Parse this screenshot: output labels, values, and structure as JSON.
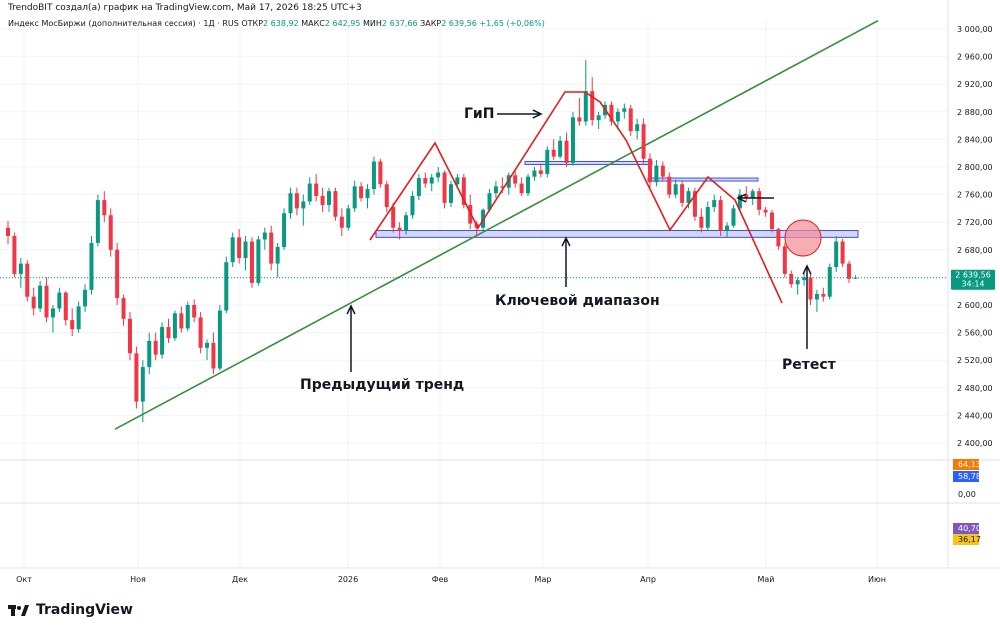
{
  "header": {
    "attribution": "TrendoBIT создал(а) график на TradingView.com, Май 17, 2026 18:25 UTC+3",
    "symbol_line": "Индекс МосБиржи (дополнительная сессия) · 1Д · RUS",
    "open_label": "ОТКР",
    "open_value": "2 638,92",
    "high_label": "МАКС",
    "high_value": "2 642,95",
    "low_label": "МИН",
    "low_value": "2 637,66",
    "close_label": "ЗАКР",
    "close_value": "2 639,56",
    "change_value": "+1,65 (+0,06%)"
  },
  "colors": {
    "up": "#089981",
    "down": "#f23645",
    "trendline": "#388e3c",
    "zigzag": "#e01f1f",
    "zone_fill": "#c5caf5",
    "zone_stroke": "#3f51e8",
    "retest_circle": "#f48c94",
    "grid": "#f0f3fa",
    "axis_text": "#131722"
  },
  "price_axis": {
    "ticks": [
      "3 000,00",
      "2 960,00",
      "2 920,00",
      "2 880,00",
      "2 840,00",
      "2 800,00",
      "2 760,00",
      "2 720,00",
      "2 680,00",
      "2 640,00",
      "2 600,00",
      "2 560,00",
      "2 520,00",
      "2 480,00",
      "2 440,00",
      "2 400,00"
    ],
    "last_price": "2 639,56",
    "countdown": "34:14"
  },
  "indicator_axis": {
    "pane1": [
      {
        "label": "64,13",
        "color": "#f57c00"
      },
      {
        "label": "58,78",
        "color": "#2962ff"
      },
      {
        "label": "0,00",
        "color": "none"
      }
    ],
    "pane2": [
      {
        "label": "40,70",
        "color": "#7e57c2"
      },
      {
        "label": "36,17",
        "color": "#f5c518"
      }
    ]
  },
  "time_axis": [
    "Окт",
    "Ноя",
    "Дек",
    "2026",
    "Фев",
    "Мар",
    "Апр",
    "Май",
    "Июн"
  ],
  "annotations": {
    "hs": "ГиП",
    "key_range": "Ключевой диапазон",
    "prev_trend": "Предыдущий тренд",
    "retest": "Ретест"
  },
  "brand": {
    "name": "TradingView"
  },
  "chart_data": {
    "type": "candlestick",
    "title": "Индекс МосБиржи (дополнительная сессия) · 1Д · RUS",
    "ylim": [
      2380,
      3020
    ],
    "ohlc": [
      [
        2712,
        2722,
        2688,
        2700
      ],
      [
        2700,
        2705,
        2640,
        2645
      ],
      [
        2645,
        2668,
        2625,
        2660
      ],
      [
        2660,
        2665,
        2605,
        2612
      ],
      [
        2612,
        2625,
        2585,
        2595
      ],
      [
        2595,
        2635,
        2590,
        2628
      ],
      [
        2628,
        2640,
        2575,
        2582
      ],
      [
        2582,
        2600,
        2560,
        2595
      ],
      [
        2595,
        2625,
        2590,
        2618
      ],
      [
        2618,
        2620,
        2570,
        2578
      ],
      [
        2578,
        2595,
        2555,
        2565
      ],
      [
        2565,
        2605,
        2560,
        2598
      ],
      [
        2598,
        2630,
        2590,
        2622
      ],
      [
        2622,
        2700,
        2615,
        2690
      ],
      [
        2690,
        2760,
        2685,
        2752
      ],
      [
        2752,
        2765,
        2720,
        2730
      ],
      [
        2730,
        2740,
        2670,
        2680
      ],
      [
        2680,
        2690,
        2600,
        2610
      ],
      [
        2610,
        2615,
        2570,
        2580
      ],
      [
        2580,
        2590,
        2520,
        2530
      ],
      [
        2530,
        2540,
        2450,
        2460
      ],
      [
        2460,
        2520,
        2430,
        2510
      ],
      [
        2510,
        2560,
        2500,
        2548
      ],
      [
        2548,
        2560,
        2520,
        2528
      ],
      [
        2528,
        2575,
        2522,
        2568
      ],
      [
        2568,
        2580,
        2545,
        2552
      ],
      [
        2552,
        2592,
        2548,
        2588
      ],
      [
        2588,
        2598,
        2560,
        2566
      ],
      [
        2566,
        2605,
        2562,
        2600
      ],
      [
        2600,
        2608,
        2575,
        2582
      ],
      [
        2582,
        2590,
        2530,
        2538
      ],
      [
        2538,
        2550,
        2520,
        2545
      ],
      [
        2545,
        2560,
        2500,
        2508
      ],
      [
        2508,
        2600,
        2505,
        2592
      ],
      [
        2592,
        2670,
        2588,
        2662
      ],
      [
        2662,
        2705,
        2655,
        2698
      ],
      [
        2698,
        2710,
        2660,
        2668
      ],
      [
        2668,
        2700,
        2650,
        2692
      ],
      [
        2692,
        2698,
        2625,
        2632
      ],
      [
        2632,
        2700,
        2628,
        2695
      ],
      [
        2695,
        2712,
        2680,
        2705
      ],
      [
        2705,
        2715,
        2650,
        2660
      ],
      [
        2660,
        2690,
        2640,
        2684
      ],
      [
        2684,
        2740,
        2680,
        2733
      ],
      [
        2733,
        2770,
        2725,
        2762
      ],
      [
        2762,
        2770,
        2730,
        2740
      ],
      [
        2740,
        2760,
        2715,
        2750
      ],
      [
        2750,
        2785,
        2745,
        2776
      ],
      [
        2776,
        2790,
        2750,
        2758
      ],
      [
        2758,
        2770,
        2735,
        2745
      ],
      [
        2745,
        2770,
        2735,
        2765
      ],
      [
        2765,
        2770,
        2722,
        2728
      ],
      [
        2728,
        2740,
        2700,
        2712
      ],
      [
        2712,
        2745,
        2708,
        2740
      ],
      [
        2740,
        2780,
        2735,
        2772
      ],
      [
        2772,
        2778,
        2750,
        2755
      ],
      [
        2755,
        2775,
        2740,
        2768
      ],
      [
        2768,
        2815,
        2760,
        2808
      ],
      [
        2808,
        2812,
        2770,
        2775
      ],
      [
        2775,
        2780,
        2735,
        2742
      ],
      [
        2742,
        2748,
        2705,
        2712
      ],
      [
        2712,
        2720,
        2695,
        2708
      ],
      [
        2708,
        2735,
        2702,
        2730
      ],
      [
        2730,
        2765,
        2725,
        2758
      ],
      [
        2758,
        2790,
        2752,
        2784
      ],
      [
        2784,
        2792,
        2770,
        2776
      ],
      [
        2776,
        2790,
        2765,
        2785
      ],
      [
        2785,
        2800,
        2778,
        2792
      ],
      [
        2792,
        2795,
        2740,
        2748
      ],
      [
        2748,
        2780,
        2742,
        2775
      ],
      [
        2775,
        2790,
        2770,
        2785
      ],
      [
        2785,
        2790,
        2740,
        2745
      ],
      [
        2745,
        2760,
        2710,
        2718
      ],
      [
        2718,
        2722,
        2700,
        2712
      ],
      [
        2712,
        2740,
        2708,
        2738
      ],
      [
        2738,
        2768,
        2735,
        2762
      ],
      [
        2762,
        2780,
        2755,
        2772
      ],
      [
        2772,
        2785,
        2762,
        2770
      ],
      [
        2770,
        2792,
        2760,
        2788
      ],
      [
        2788,
        2795,
        2770,
        2776
      ],
      [
        2776,
        2785,
        2758,
        2762
      ],
      [
        2762,
        2790,
        2758,
        2786
      ],
      [
        2786,
        2800,
        2780,
        2795
      ],
      [
        2795,
        2805,
        2785,
        2790
      ],
      [
        2790,
        2830,
        2785,
        2825
      ],
      [
        2825,
        2840,
        2810,
        2815
      ],
      [
        2815,
        2845,
        2812,
        2838
      ],
      [
        2838,
        2850,
        2800,
        2806
      ],
      [
        2806,
        2880,
        2802,
        2872
      ],
      [
        2872,
        2900,
        2860,
        2866
      ],
      [
        2866,
        2955,
        2860,
        2910
      ],
      [
        2910,
        2930,
        2860,
        2868
      ],
      [
        2868,
        2880,
        2855,
        2875
      ],
      [
        2875,
        2895,
        2870,
        2890
      ],
      [
        2890,
        2895,
        2860,
        2866
      ],
      [
        2866,
        2885,
        2855,
        2880
      ],
      [
        2880,
        2892,
        2870,
        2885
      ],
      [
        2885,
        2890,
        2845,
        2852
      ],
      [
        2852,
        2870,
        2840,
        2862
      ],
      [
        2862,
        2870,
        2805,
        2812
      ],
      [
        2812,
        2820,
        2770,
        2778
      ],
      [
        2778,
        2810,
        2772,
        2802
      ],
      [
        2802,
        2808,
        2780,
        2786
      ],
      [
        2786,
        2792,
        2755,
        2760
      ],
      [
        2760,
        2782,
        2755,
        2775
      ],
      [
        2775,
        2780,
        2742,
        2748
      ],
      [
        2748,
        2770,
        2740,
        2765
      ],
      [
        2765,
        2770,
        2722,
        2728
      ],
      [
        2728,
        2740,
        2705,
        2712
      ],
      [
        2712,
        2750,
        2708,
        2742
      ],
      [
        2742,
        2760,
        2735,
        2752
      ],
      [
        2752,
        2758,
        2700,
        2708
      ],
      [
        2708,
        2720,
        2698,
        2715
      ],
      [
        2715,
        2745,
        2712,
        2740
      ],
      [
        2740,
        2768,
        2735,
        2760
      ],
      [
        2760,
        2772,
        2750,
        2755
      ],
      [
        2755,
        2768,
        2745,
        2765
      ],
      [
        2765,
        2770,
        2730,
        2738
      ],
      [
        2738,
        2742,
        2728,
        2734
      ],
      [
        2734,
        2738,
        2705,
        2710
      ],
      [
        2710,
        2712,
        2680,
        2685
      ],
      [
        2685,
        2690,
        2640,
        2645
      ],
      [
        2645,
        2650,
        2625,
        2630
      ],
      [
        2630,
        2640,
        2615,
        2636
      ],
      [
        2636,
        2648,
        2628,
        2640
      ],
      [
        2640,
        2645,
        2600,
        2608
      ],
      [
        2608,
        2622,
        2590,
        2616
      ],
      [
        2616,
        2625,
        2605,
        2612
      ],
      [
        2612,
        2660,
        2608,
        2655
      ],
      [
        2655,
        2700,
        2648,
        2692
      ],
      [
        2692,
        2696,
        2655,
        2660
      ],
      [
        2660,
        2664,
        2632,
        2638
      ],
      [
        2638.92,
        2642.95,
        2637.66,
        2639.56
      ]
    ],
    "series": [
      {
        "name": "Предыдущий тренд",
        "type": "trendline",
        "values": [
          2420,
          3012
        ]
      }
    ],
    "zones": [
      {
        "from": 2698,
        "to": 2708
      },
      {
        "from": 2804,
        "to": 2808
      },
      {
        "from": 2780,
        "to": 2784
      }
    ]
  }
}
